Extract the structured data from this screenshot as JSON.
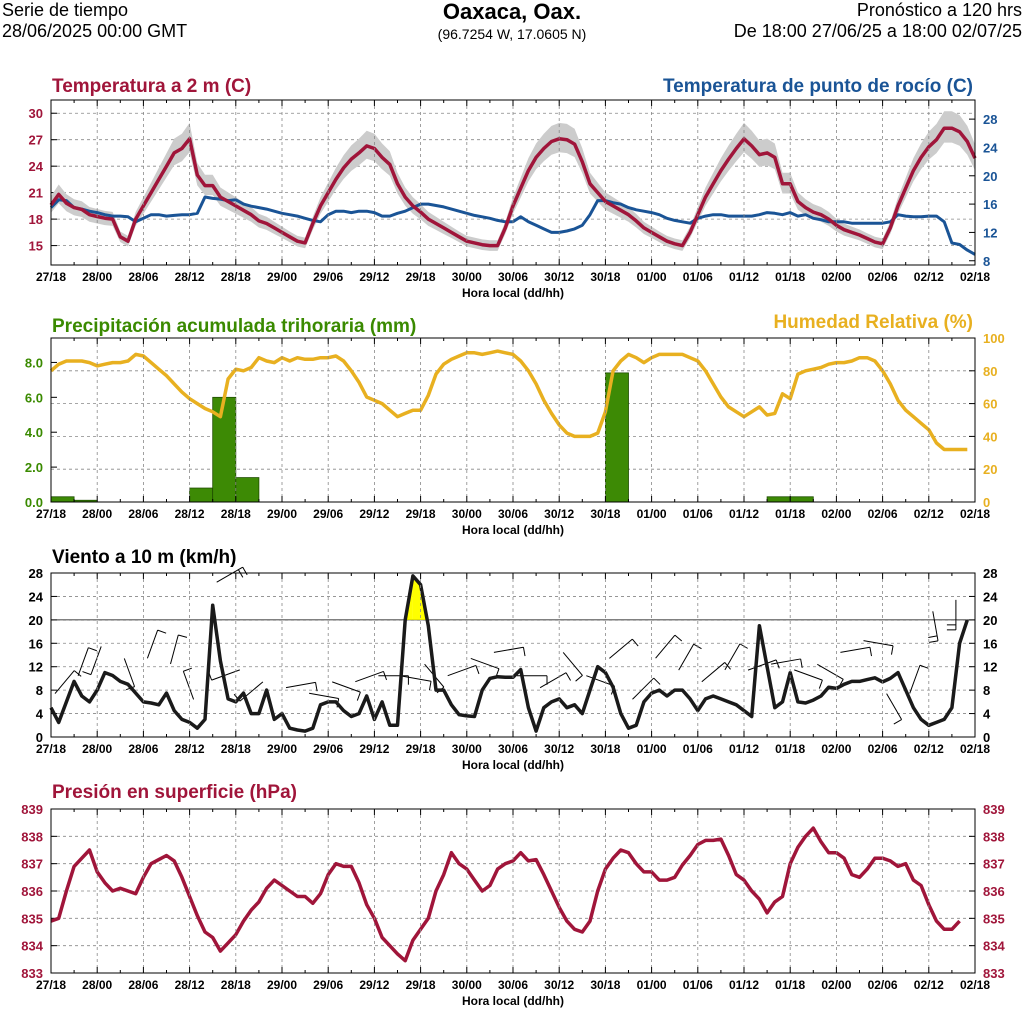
{
  "header": {
    "left_line1": "Serie de tiempo",
    "left_line2": "28/06/2025 00:00 GMT",
    "title": "Oaxaca, Oax.",
    "coords": "(96.7254 W, 17.0605 N)",
    "right_line1": "Pronóstico a 120 hrs",
    "right_line2": "De 18:00 27/06/25 a 18:00 02/07/25"
  },
  "colors": {
    "temp": "#a0153a",
    "dew": "#1a5496",
    "precip": "#3a8a00",
    "precip_fill": "#3d8a05",
    "rh": "#e8b020",
    "wind": "#1a1a1a",
    "pressure": "#a0153a",
    "band": "#cccccc"
  },
  "chart_data": [
    {
      "type": "line",
      "title_left": "Temperatura a 2 m (C)",
      "title_right": "Temperatura de punto de rocío (C)",
      "xlabel": "Hora local (dd/hh)",
      "x_ticks": [
        "27/18",
        "28/00",
        "28/06",
        "28/12",
        "28/18",
        "29/00",
        "29/06",
        "29/12",
        "29/18",
        "30/00",
        "30/06",
        "30/12",
        "30/18",
        "01/00",
        "01/06",
        "01/12",
        "01/18",
        "02/00",
        "02/06",
        "02/12",
        "02/18"
      ],
      "y_left_ticks": [
        15,
        18,
        21,
        24,
        27,
        30
      ],
      "y_left_range": [
        12.8,
        31.5
      ],
      "y_right_ticks": [
        8,
        12,
        16,
        20,
        24,
        28
      ],
      "y_right_range": [
        7.4,
        30.7
      ],
      "series": [
        {
          "name": "Temperatura a 2 m (C)",
          "axis": "left",
          "values": [
            19.6,
            20.8,
            19.8,
            19.3,
            19.1,
            18.5,
            18.3,
            18.1,
            18.0,
            16.0,
            15.5,
            18.0,
            19.5,
            21.0,
            22.5,
            24.0,
            25.5,
            26.0,
            27.1,
            23.0,
            21.8,
            21.8,
            20.5,
            20.0,
            19.5,
            19.0,
            18.5,
            17.8,
            17.5,
            17.0,
            16.5,
            16.0,
            15.5,
            15.3,
            17.5,
            19.5,
            21.0,
            22.5,
            23.8,
            24.8,
            25.5,
            26.3,
            26.0,
            25.0,
            24.2,
            22.0,
            20.5,
            19.5,
            18.8,
            18.0,
            17.5,
            17.0,
            16.5,
            16.0,
            15.5,
            15.3,
            15.1,
            15.0,
            15.0,
            17.0,
            19.5,
            21.5,
            23.5,
            25.0,
            26.0,
            26.8,
            27.1,
            27.0,
            26.5,
            24.5,
            22.0,
            21.0,
            20.0,
            19.5,
            19.0,
            18.5,
            17.8,
            17.0,
            16.5,
            16.0,
            15.5,
            15.2,
            15.0,
            16.5,
            18.5,
            20.5,
            22.0,
            23.5,
            24.8,
            26.0,
            27.1,
            26.3,
            25.3,
            25.5,
            25.0,
            22.0,
            22.0,
            20.0,
            19.3,
            18.8,
            18.5,
            18.0,
            17.3,
            16.8,
            16.5,
            16.2,
            15.8,
            15.4,
            15.2,
            17.0,
            19.5,
            21.5,
            23.5,
            25.0,
            26.2,
            27.0,
            28.3,
            28.3,
            27.9,
            26.8,
            24.9
          ]
        },
        {
          "name": "Temperatura de punto de rocío (C)",
          "axis": "right",
          "values": [
            15.5,
            16.6,
            16.5,
            15.5,
            15.3,
            15.0,
            14.8,
            14.5,
            14.3,
            14.3,
            14.2,
            13.5,
            14.0,
            14.5,
            14.5,
            14.3,
            14.4,
            14.5,
            14.5,
            14.7,
            17.0,
            16.8,
            16.7,
            16.5,
            16.6,
            16.0,
            15.7,
            15.5,
            15.3,
            15.0,
            14.7,
            14.5,
            14.3,
            14.0,
            13.7,
            13.5,
            14.5,
            15.0,
            15.0,
            14.8,
            15.0,
            15.0,
            14.8,
            14.3,
            14.3,
            14.7,
            15.0,
            15.5,
            16.0,
            16.0,
            15.8,
            15.6,
            15.3,
            15.0,
            14.7,
            14.4,
            14.2,
            14.0,
            13.7,
            13.5,
            13.5,
            14.2,
            13.5,
            13.0,
            12.5,
            12.0,
            12.0,
            12.2,
            12.5,
            13.0,
            14.5,
            16.5,
            16.5,
            16.2,
            16.0,
            15.5,
            15.2,
            15.0,
            14.8,
            14.5,
            14.0,
            13.7,
            13.5,
            13.3,
            14.0,
            14.3,
            14.5,
            14.5,
            14.3,
            14.3,
            14.3,
            14.3,
            14.5,
            14.8,
            14.7,
            14.5,
            14.8,
            14.3,
            14.5,
            14.0,
            13.8,
            13.5,
            13.5,
            13.5,
            13.3,
            13.3,
            13.3,
            13.3,
            13.3,
            13.5,
            14.5,
            14.3,
            14.2,
            14.2,
            14.3,
            14.3,
            13.5,
            10.5,
            10.3,
            9.5,
            8.9
          ]
        }
      ]
    },
    {
      "type": "bar",
      "title_left": "Precipitación acumulada trihoraria (mm)",
      "title_right": "Humedad Relativa (%)",
      "xlabel": "Hora local (dd/hh)",
      "x_ticks": [
        "27/18",
        "28/00",
        "28/06",
        "28/12",
        "28/18",
        "29/00",
        "29/06",
        "29/12",
        "29/18",
        "30/00",
        "30/06",
        "30/12",
        "30/18",
        "01/00",
        "01/06",
        "01/12",
        "01/18",
        "02/00",
        "02/06",
        "02/12",
        "02/18"
      ],
      "y_left_ticks": [
        "0.0",
        "2.0",
        "4.0",
        "6.0",
        "8.0"
      ],
      "y_left_range": [
        0,
        9.4
      ],
      "y_right_ticks": [
        0,
        20,
        40,
        60,
        80,
        100
      ],
      "y_right_range": [
        0,
        100
      ],
      "bars": [
        {
          "start_hour": 0,
          "value": 0.3
        },
        {
          "start_hour": 3,
          "value": 0.1
        },
        {
          "start_hour": 18,
          "value": 0.8
        },
        {
          "start_hour": 21,
          "value": 6.0
        },
        {
          "start_hour": 24,
          "value": 1.4
        },
        {
          "start_hour": 72,
          "value": 7.4
        },
        {
          "start_hour": 93,
          "value": 0.3
        },
        {
          "start_hour": 96,
          "value": 0.3
        }
      ],
      "series": [
        {
          "name": "Humedad Relativa (%)",
          "axis": "right",
          "values": [
            80,
            84,
            86,
            86,
            86,
            85,
            83,
            84,
            85,
            85,
            86,
            90,
            89,
            85,
            81,
            77,
            72,
            67,
            63,
            60,
            57,
            55,
            52,
            75,
            81,
            80,
            82,
            88,
            86,
            85,
            88,
            86,
            88,
            87,
            87,
            88,
            88,
            89,
            86,
            80,
            73,
            64,
            62,
            60,
            56,
            52,
            54,
            56,
            56,
            65,
            78,
            84,
            87,
            89,
            91,
            91,
            90,
            91,
            92,
            91,
            90,
            86,
            80,
            72,
            62,
            54,
            47,
            42,
            40,
            40,
            40,
            42,
            55,
            80,
            86,
            90,
            88,
            85,
            88,
            90,
            90,
            90,
            90,
            88,
            86,
            80,
            72,
            64,
            58,
            55,
            52,
            55,
            58,
            53,
            54,
            66,
            63,
            78,
            80,
            81,
            82,
            84,
            85,
            85,
            86,
            88,
            88,
            86,
            80,
            72,
            62,
            56,
            52,
            48,
            44,
            36,
            32,
            32,
            32,
            32
          ]
        }
      ]
    },
    {
      "type": "line",
      "title_left": "Viento a 10 m (km/h)",
      "xlabel": "Hora local (dd/hh)",
      "x_ticks": [
        "27/18",
        "28/00",
        "28/06",
        "28/12",
        "28/18",
        "29/00",
        "29/06",
        "29/12",
        "29/18",
        "30/00",
        "30/06",
        "30/12",
        "30/18",
        "01/00",
        "01/06",
        "01/12",
        "01/18",
        "02/00",
        "02/06",
        "02/12",
        "02/18"
      ],
      "y_ticks": [
        0,
        4,
        8,
        12,
        16,
        20,
        24,
        28
      ],
      "y_range": [
        0,
        28
      ],
      "reference_line": 20,
      "series": [
        {
          "name": "Viento a 10 m (km/h)",
          "values": [
            5,
            2.5,
            6,
            9.5,
            7,
            6,
            8,
            11,
            10.5,
            9.5,
            9,
            7.5,
            6,
            5.8,
            5.5,
            7.5,
            4.5,
            3,
            2.5,
            1.5,
            3,
            22.5,
            13,
            6.5,
            6,
            7.5,
            4,
            4,
            8,
            3,
            4,
            1.5,
            1.2,
            1,
            1.5,
            5.5,
            6,
            6,
            4.5,
            3.5,
            4,
            7,
            3,
            6,
            2,
            2,
            20,
            27.5,
            26,
            19,
            8,
            8,
            5.5,
            3.8,
            3.6,
            3.5,
            8,
            10,
            10.3,
            10.2,
            10.2,
            11.5,
            5,
            1,
            5,
            6,
            6.5,
            5,
            5.5,
            4,
            8,
            12,
            11,
            8.5,
            4,
            1.5,
            2,
            6,
            7.5,
            8,
            7,
            8,
            8,
            6.5,
            4.5,
            6.5,
            7,
            6.5,
            6,
            5.5,
            4.5,
            3.5,
            19,
            12,
            5,
            6,
            11,
            6,
            5.8,
            6.3,
            7,
            8.5,
            8.3,
            9,
            9.5,
            9.5,
            9.8,
            10.1,
            9.4,
            10,
            11,
            8,
            5,
            3,
            2,
            2.5,
            3,
            5,
            16,
            20
          ]
        }
      ]
    },
    {
      "type": "line",
      "title_left": "Presión en superficie (hPa)",
      "xlabel": "Hora local (dd/hh)",
      "x_ticks": [
        "27/18",
        "28/00",
        "28/06",
        "28/12",
        "28/18",
        "29/00",
        "29/06",
        "29/12",
        "29/18",
        "30/00",
        "30/06",
        "30/12",
        "30/18",
        "01/00",
        "01/06",
        "01/12",
        "01/18",
        "02/00",
        "02/06",
        "02/12",
        "02/18"
      ],
      "y_ticks": [
        833,
        834,
        835,
        836,
        837,
        838,
        839
      ],
      "y_range": [
        833,
        839
      ],
      "series": [
        {
          "name": "Presión en superficie (hPa)",
          "values": [
            834.9,
            835.0,
            836.0,
            836.9,
            837.2,
            837.5,
            836.7,
            836.3,
            836.0,
            836.1,
            836.0,
            835.9,
            836.5,
            837.0,
            837.15,
            837.3,
            837.1,
            836.5,
            835.8,
            835.1,
            834.5,
            834.3,
            833.8,
            834.1,
            834.4,
            834.9,
            835.3,
            835.6,
            836.1,
            836.4,
            836.2,
            836.0,
            835.8,
            835.8,
            835.55,
            835.9,
            836.6,
            837.0,
            836.9,
            836.9,
            836.3,
            835.5,
            835.0,
            834.3,
            834.0,
            833.7,
            833.45,
            834.2,
            834.6,
            835.0,
            836.0,
            836.6,
            837.4,
            837.0,
            836.8,
            836.4,
            836.0,
            836.2,
            836.8,
            837.0,
            837.1,
            837.4,
            837.1,
            837.15,
            836.6,
            836.0,
            835.4,
            834.9,
            834.6,
            834.5,
            834.9,
            836.0,
            836.8,
            837.2,
            837.5,
            837.4,
            837.0,
            836.7,
            836.7,
            836.4,
            836.4,
            836.5,
            836.95,
            837.3,
            837.7,
            837.85,
            837.85,
            837.9,
            837.3,
            836.6,
            836.4,
            836.0,
            835.7,
            835.2,
            835.6,
            835.8,
            837.0,
            837.6,
            838.0,
            838.3,
            837.8,
            837.4,
            837.4,
            837.2,
            836.6,
            836.5,
            836.8,
            837.2,
            837.2,
            837.1,
            836.9,
            837.0,
            836.4,
            836.2,
            835.5,
            834.9,
            834.6,
            834.6,
            834.9
          ]
        }
      ]
    }
  ],
  "wind_barbs": [
    {
      "hour": 0,
      "speed": 4
    },
    {
      "hour": 3,
      "speed": 6
    },
    {
      "hour": 6,
      "speed": 10
    },
    {
      "hour": 9,
      "speed": 10
    },
    {
      "hour": 12,
      "speed": 9
    },
    {
      "hour": 15,
      "speed": 7
    },
    {
      "hour": 18,
      "speed": 3
    },
    {
      "hour": 21,
      "speed": 22
    },
    {
      "hour": 24,
      "speed": 6
    },
    {
      "hour": 27,
      "speed": 6
    },
    {
      "hour": 30,
      "speed": 4
    },
    {
      "hour": 33,
      "speed": 2
    },
    {
      "hour": 36,
      "speed": 6
    },
    {
      "hour": 39,
      "speed": 5
    },
    {
      "hour": 42,
      "speed": 5
    },
    {
      "hour": 45,
      "speed": 7
    },
    {
      "hour": 48,
      "speed": 8
    },
    {
      "hour": 51,
      "speed": 5
    },
    {
      "hour": 54,
      "speed": 10
    },
    {
      "hour": 57,
      "speed": 10
    },
    {
      "hour": 60,
      "speed": 5
    },
    {
      "hour": 63,
      "speed": 5
    },
    {
      "hour": 66,
      "speed": 10
    },
    {
      "hour": 69,
      "speed": 5
    },
    {
      "hour": 72,
      "speed": 10
    },
    {
      "hour": 75,
      "speed": 2
    },
    {
      "hour": 78,
      "speed": 8
    },
    {
      "hour": 81,
      "speed": 8
    },
    {
      "hour": 84,
      "speed": 5
    },
    {
      "hour": 87,
      "speed": 6
    },
    {
      "hour": 90,
      "speed": 8
    },
    {
      "hour": 93,
      "speed": 8
    },
    {
      "hour": 96,
      "speed": 6
    },
    {
      "hour": 99,
      "speed": 9
    },
    {
      "hour": 102,
      "speed": 10
    },
    {
      "hour": 105,
      "speed": 11
    },
    {
      "hour": 108,
      "speed": 4
    },
    {
      "hour": 111,
      "speed": 3
    },
    {
      "hour": 114,
      "speed": 16
    },
    {
      "hour": 117,
      "speed": 20
    }
  ]
}
